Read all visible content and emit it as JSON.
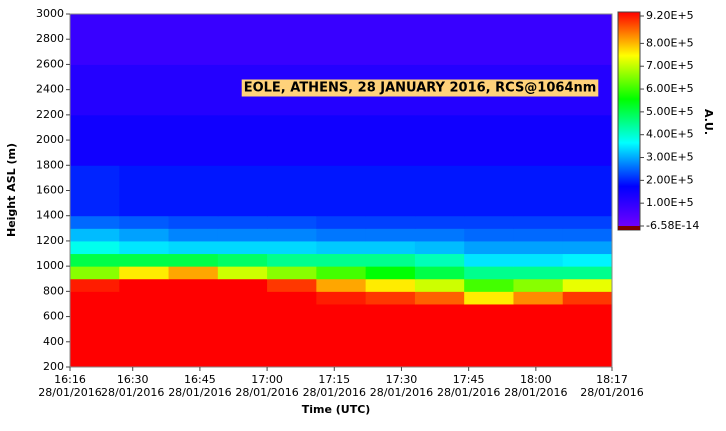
{
  "chart_data": {
    "type": "heatmap",
    "annotation": "EOLE, ATHENS, 28 JANUARY 2016, RCS@1064nm",
    "xlabel": "Time (UTC)",
    "ylabel": "Height ASL (m)",
    "colorbar_label": "A.U.",
    "xlim": [
      976,
      1097
    ],
    "xticks": [
      {
        "value": 976,
        "label": "16:16",
        "date": "28/01/2016"
      },
      {
        "value": 990,
        "label": "16:30",
        "date": "28/01/2016"
      },
      {
        "value": 1005,
        "label": "16:45",
        "date": "28/01/2016"
      },
      {
        "value": 1020,
        "label": "17:00",
        "date": "28/01/2016"
      },
      {
        "value": 1035,
        "label": "17:15",
        "date": "28/01/2016"
      },
      {
        "value": 1050,
        "label": "17:30",
        "date": "28/01/2016"
      },
      {
        "value": 1065,
        "label": "17:45",
        "date": "28/01/2016"
      },
      {
        "value": 1080,
        "label": "18:00",
        "date": "28/01/2016"
      },
      {
        "value": 1097,
        "label": "18:17",
        "date": "28/01/2016"
      }
    ],
    "ylim": [
      200,
      3000
    ],
    "yticks": [
      200,
      400,
      600,
      800,
      1000,
      1200,
      1400,
      1600,
      1800,
      2000,
      2200,
      2400,
      2600,
      2800,
      3000
    ],
    "x_edges": [
      976,
      987,
      998,
      1009,
      1020,
      1031,
      1042,
      1053,
      1064,
      1075,
      1086,
      1097
    ],
    "y_edges": [
      200,
      400,
      600,
      700,
      800,
      900,
      1000,
      1100,
      1200,
      1300,
      1400,
      1800,
      2200,
      2600,
      3000
    ],
    "z": [
      [
        1200000,
        1200000,
        1200000,
        1200000,
        1200000,
        1200000,
        1200000,
        1200000,
        1200000,
        1200000,
        1200000
      ],
      [
        1100000,
        1100000,
        1100000,
        1100000,
        1100000,
        1100000,
        1100000,
        1100000,
        1100000,
        1100000,
        1100000
      ],
      [
        1000000,
        1000000,
        1000000,
        1000000,
        1000000,
        1000000,
        1000000,
        1000000,
        1000000,
        1000000,
        1000000
      ],
      [
        950000,
        960000,
        960000,
        940000,
        920000,
        900000,
        880000,
        850000,
        750000,
        820000,
        880000
      ],
      [
        900000,
        930000,
        940000,
        920000,
        880000,
        800000,
        750000,
        700000,
        600000,
        650000,
        720000
      ],
      [
        650000,
        750000,
        800000,
        700000,
        650000,
        600000,
        550000,
        500000,
        450000,
        450000,
        450000
      ],
      [
        500000,
        500000,
        500000,
        480000,
        450000,
        450000,
        450000,
        420000,
        350000,
        350000,
        360000
      ],
      [
        380000,
        350000,
        340000,
        340000,
        340000,
        330000,
        330000,
        320000,
        300000,
        300000,
        300000
      ],
      [
        320000,
        300000,
        280000,
        280000,
        280000,
        270000,
        270000,
        270000,
        260000,
        260000,
        260000
      ],
      [
        260000,
        250000,
        240000,
        240000,
        240000,
        230000,
        230000,
        230000,
        230000,
        230000,
        230000
      ],
      [
        210000,
        200000,
        200000,
        200000,
        200000,
        200000,
        200000,
        200000,
        200000,
        200000,
        200000
      ],
      [
        160000,
        160000,
        160000,
        160000,
        160000,
        160000,
        160000,
        160000,
        160000,
        160000,
        160000
      ],
      [
        130000,
        130000,
        130000,
        130000,
        130000,
        130000,
        130000,
        130000,
        130000,
        130000,
        130000
      ],
      [
        100000,
        100000,
        100000,
        100000,
        100000,
        100000,
        100000,
        100000,
        100000,
        100000,
        100000
      ]
    ],
    "zlim": [
      -6.58e-14,
      920000
    ],
    "colorscale": [
      "#7a00ff",
      "#0000ff",
      "#00ffff",
      "#00ff00",
      "#ffff00",
      "#ff0000"
    ],
    "zticks": [
      {
        "value": 920000,
        "label": "9.20E+5"
      },
      {
        "value": 800000,
        "label": "8.00E+5"
      },
      {
        "value": 700000,
        "label": "7.00E+5"
      },
      {
        "value": 600000,
        "label": "6.00E+5"
      },
      {
        "value": 500000,
        "label": "5.00E+5"
      },
      {
        "value": 400000,
        "label": "4.00E+5"
      },
      {
        "value": 300000,
        "label": "3.00E+5"
      },
      {
        "value": 200000,
        "label": "2.00E+5"
      },
      {
        "value": 100000,
        "label": "1.00E+5"
      },
      {
        "value": -6.58e-14,
        "label": "-6.58E-14"
      }
    ]
  }
}
